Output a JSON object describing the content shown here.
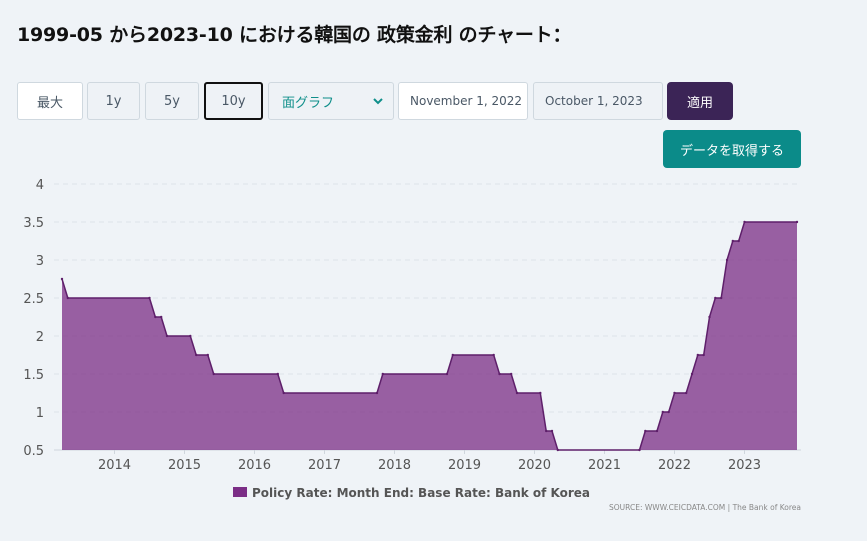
{
  "title": "1999-05 から2023-10 における韓国の 政策金利 のチャート：",
  "range_buttons": [
    {
      "label": "最大",
      "active": false
    },
    {
      "label": "1y",
      "active": false
    },
    {
      "label": "5y",
      "active": false
    },
    {
      "label": "10y",
      "active": true
    }
  ],
  "chart_type_select": {
    "selected": "面グラフ",
    "icon": "chevron-down-icon"
  },
  "start_date": "November 1, 2022",
  "end_date": "October 1, 2023",
  "apply_label": "適用",
  "get_data_label": "データを取得する",
  "colors": {
    "series": "#7b2d86",
    "accent_teal": "#0b8b89",
    "apply": "#3b2456"
  },
  "chart_data": {
    "type": "area",
    "title": "",
    "xlabel": "",
    "ylabel": "",
    "ylim": [
      0.5,
      4
    ],
    "yticks": [
      "0.5",
      "1",
      "1.5",
      "2",
      "2.5",
      "3",
      "3.5",
      "4"
    ],
    "xlim": [
      2013.25,
      2023.75
    ],
    "xticks": [
      "2014",
      "2015",
      "2016",
      "2017",
      "2018",
      "2019",
      "2020",
      "2021",
      "2022",
      "2023"
    ],
    "grid": "horizontal dashed",
    "legend_position": "bottom",
    "source": "SOURCE: WWW.CEICDATA.COM | The Bank of Korea",
    "series": [
      {
        "name": "Policy Rate: Month End: Base Rate: Bank of Korea",
        "points": [
          [
            "2013-04",
            2.75
          ],
          [
            "2013-05",
            2.5
          ],
          [
            "2014-07",
            2.5
          ],
          [
            "2014-08",
            2.25
          ],
          [
            "2014-09",
            2.25
          ],
          [
            "2014-10",
            2.0
          ],
          [
            "2015-02",
            2.0
          ],
          [
            "2015-03",
            1.75
          ],
          [
            "2015-05",
            1.75
          ],
          [
            "2015-06",
            1.5
          ],
          [
            "2016-05",
            1.5
          ],
          [
            "2016-06",
            1.25
          ],
          [
            "2017-10",
            1.25
          ],
          [
            "2017-11",
            1.5
          ],
          [
            "2018-10",
            1.5
          ],
          [
            "2018-11",
            1.75
          ],
          [
            "2019-06",
            1.75
          ],
          [
            "2019-07",
            1.5
          ],
          [
            "2019-09",
            1.5
          ],
          [
            "2019-10",
            1.25
          ],
          [
            "2020-02",
            1.25
          ],
          [
            "2020-03",
            0.75
          ],
          [
            "2020-04",
            0.75
          ],
          [
            "2020-05",
            0.5
          ],
          [
            "2021-07",
            0.5
          ],
          [
            "2021-08",
            0.75
          ],
          [
            "2021-10",
            0.75
          ],
          [
            "2021-11",
            1.0
          ],
          [
            "2021-12",
            1.0
          ],
          [
            "2022-01",
            1.25
          ],
          [
            "2022-03",
            1.25
          ],
          [
            "2022-04",
            1.5
          ],
          [
            "2022-05",
            1.75
          ],
          [
            "2022-06",
            1.75
          ],
          [
            "2022-07",
            2.25
          ],
          [
            "2022-08",
            2.5
          ],
          [
            "2022-09",
            2.5
          ],
          [
            "2022-10",
            3.0
          ],
          [
            "2022-11",
            3.25
          ],
          [
            "2022-12",
            3.25
          ],
          [
            "2023-01",
            3.5
          ],
          [
            "2023-10",
            3.5
          ]
        ]
      }
    ]
  }
}
